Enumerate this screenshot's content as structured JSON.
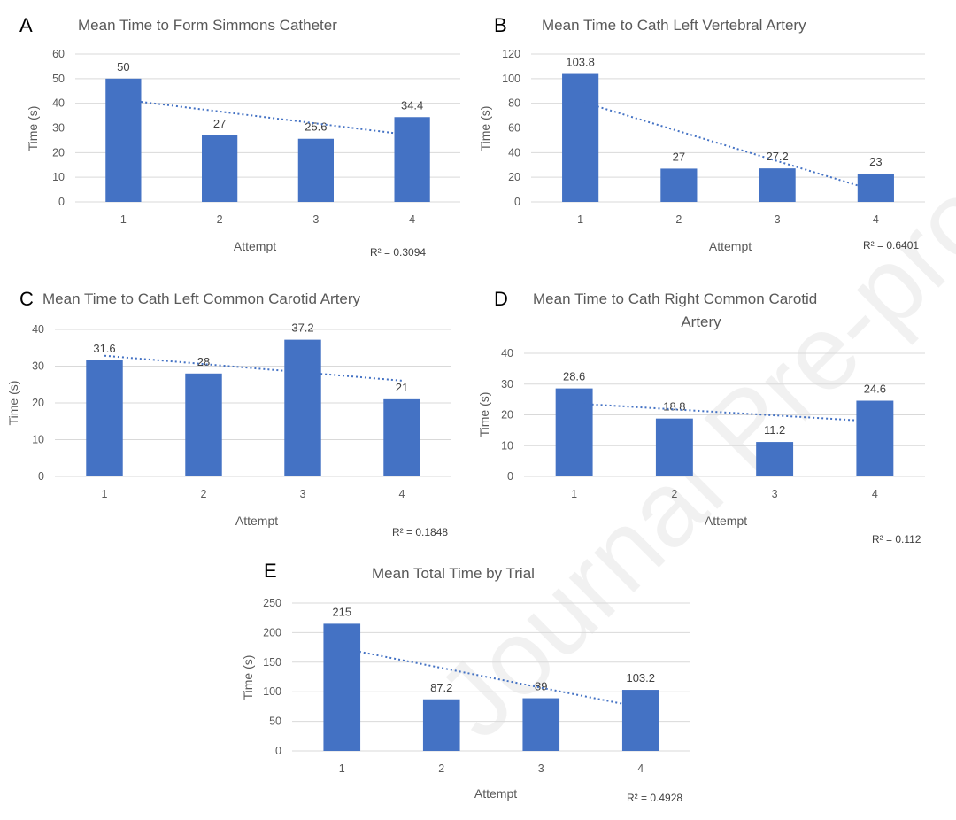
{
  "watermark": "Journal Pre-proof",
  "colors": {
    "bar": "#4472c4",
    "trend": "#4472c4",
    "grid": "#d9d9d9"
  },
  "chart_data": [
    {
      "panel": "A",
      "type": "bar",
      "title": [
        "Mean Time to Form Simmons Catheter"
      ],
      "categories": [
        "1",
        "2",
        "3",
        "4"
      ],
      "values": [
        50,
        27,
        25.6,
        34.4
      ],
      "data_labels": [
        "50",
        "27",
        "25.6",
        "34.4"
      ],
      "xlabel": "Attempt",
      "ylabel": "Time (s)",
      "ylim": [
        0,
        60
      ],
      "yticks": [
        0,
        10,
        20,
        30,
        40,
        50,
        60
      ],
      "grid": true,
      "trendline": "linear",
      "r2_label": "R² = 0.3094"
    },
    {
      "panel": "B",
      "type": "bar",
      "title": [
        "Mean Time to Cath Left Vertebral Artery"
      ],
      "categories": [
        "1",
        "2",
        "3",
        "4"
      ],
      "values": [
        103.8,
        27,
        27.2,
        23
      ],
      "data_labels": [
        "103.8",
        "27",
        "27.2",
        "23"
      ],
      "xlabel": "Attempt",
      "ylabel": "Time (s)",
      "ylim": [
        0,
        120
      ],
      "yticks": [
        0,
        20,
        40,
        60,
        80,
        100,
        120
      ],
      "grid": true,
      "trendline": "linear",
      "r2_label": "R² = 0.6401"
    },
    {
      "panel": "C",
      "type": "bar",
      "title": [
        "Mean Time to Cath Left Common Carotid Artery"
      ],
      "categories": [
        "1",
        "2",
        "3",
        "4"
      ],
      "values": [
        31.6,
        28,
        37.2,
        21
      ],
      "data_labels": [
        "31.6",
        "28",
        "37.2",
        "21"
      ],
      "xlabel": "Attempt",
      "ylabel": "Time (s)",
      "ylim": [
        0,
        40
      ],
      "yticks": [
        0,
        10,
        20,
        30,
        40
      ],
      "grid": true,
      "trendline": "linear",
      "r2_label": "R² = 0.1848"
    },
    {
      "panel": "D",
      "type": "bar",
      "title": [
        "Mean Time to Cath Right Common Carotid",
        "Artery"
      ],
      "categories": [
        "1",
        "2",
        "3",
        "4"
      ],
      "values": [
        28.6,
        18.8,
        11.2,
        24.6
      ],
      "data_labels": [
        "28.6",
        "18.8",
        "11.2",
        "24.6"
      ],
      "xlabel": "Attempt",
      "ylabel": "Time (s)",
      "ylim": [
        0,
        40
      ],
      "yticks": [
        0,
        10,
        20,
        30,
        40
      ],
      "grid": true,
      "trendline": "linear",
      "r2_label": "R² = 0.112"
    },
    {
      "panel": "E",
      "type": "bar",
      "title": [
        "Mean Total Time by Trial"
      ],
      "categories": [
        "1",
        "2",
        "3",
        "4"
      ],
      "values": [
        215,
        87.2,
        89,
        103.2
      ],
      "data_labels": [
        "215",
        "87.2",
        "89",
        "103.2"
      ],
      "xlabel": "Attempt",
      "ylabel": "Time (s)",
      "ylim": [
        0,
        250
      ],
      "yticks": [
        0,
        50,
        100,
        150,
        200,
        250
      ],
      "grid": true,
      "trendline": "linear",
      "r2_label": "R² = 0.4928"
    }
  ]
}
